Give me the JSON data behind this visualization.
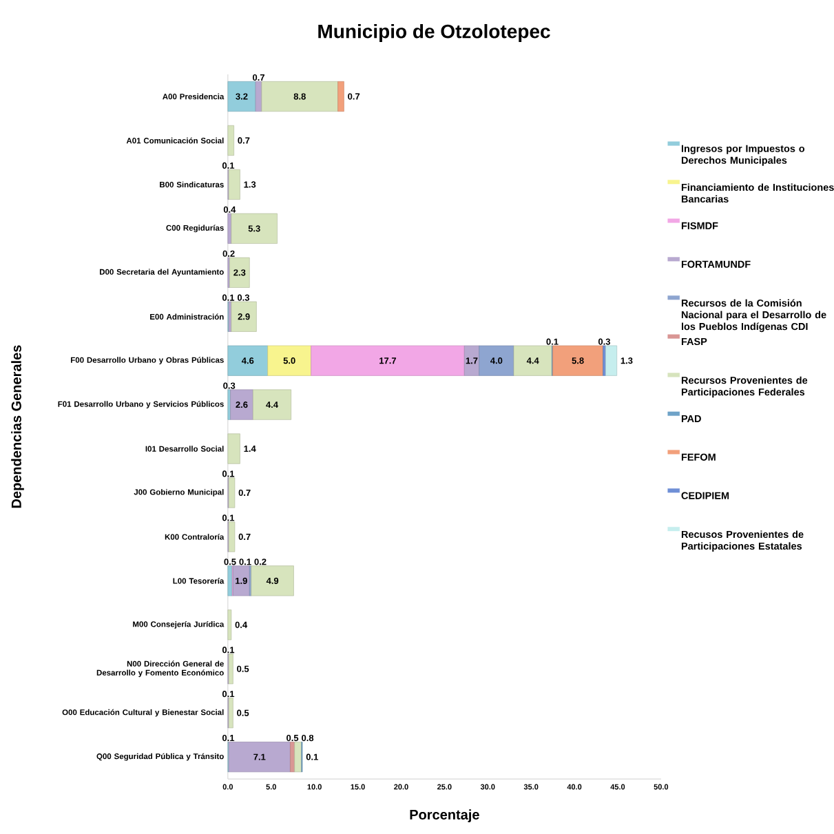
{
  "chart_data": {
    "type": "bar",
    "orientation": "horizontal",
    "stacked": true,
    "title": "Municipio de Otzolotepec",
    "xlabel": "Porcentaje",
    "ylabel": "Dependencias Generales",
    "categories": [
      "A00 Presidencia",
      "A01 Comunicación Social",
      "B00 Sindicaturas",
      "C00 Regidurías",
      "D00 Secretaria del Ayuntamiento",
      "E00 Administración",
      "F00 Desarrollo Urbano y Obras Públicas",
      "F01 Desarrollo Urbano y  Servicios Públicos",
      "I01 Desarrollo Social",
      "J00 Gobierno Municipal",
      "K00 Contraloría",
      "L00 Tesorería",
      "M00 Consejería Jurídica",
      "N00 Dirección General de Desarrollo y Fomento Económico",
      "O00 Educación Cultural y Bienestar Social",
      "Q00 Seguridad Pública y Tránsito"
    ],
    "series": [
      {
        "name": "Ingresos por Impuestos o Derechos Municipales",
        "color": "#92cddc",
        "values": [
          3.2,
          null,
          null,
          null,
          null,
          0.1,
          4.6,
          0.3,
          null,
          null,
          null,
          0.5,
          null,
          null,
          null,
          0.1
        ],
        "value_labels": [
          "3.2",
          null,
          null,
          null,
          null,
          "0.1",
          "4.6",
          "0.3",
          null,
          null,
          null,
          "0.5",
          null,
          null,
          null,
          "0.1"
        ]
      },
      {
        "name": "Financiamiento de Instituciones Bancarias",
        "color": "#f8f48e",
        "values": [
          null,
          null,
          null,
          null,
          null,
          null,
          5.0,
          null,
          null,
          null,
          null,
          null,
          null,
          null,
          null,
          null
        ],
        "value_labels": [
          null,
          null,
          null,
          null,
          null,
          null,
          "5.0",
          null,
          null,
          null,
          null,
          null,
          null,
          null,
          null,
          null
        ]
      },
      {
        "name": "FISMDF",
        "color": "#f2a7e6",
        "values": [
          null,
          null,
          null,
          null,
          null,
          null,
          17.7,
          null,
          null,
          null,
          null,
          0.1,
          null,
          null,
          null,
          null
        ],
        "value_labels": [
          null,
          null,
          null,
          null,
          null,
          null,
          "17.7",
          null,
          null,
          null,
          null,
          "0.1",
          null,
          null,
          null,
          null
        ]
      },
      {
        "name": "FORTAMUNDF",
        "color": "#b8a9d0",
        "values": [
          0.7,
          null,
          0.1,
          0.4,
          0.2,
          0.3,
          1.7,
          2.6,
          null,
          0.1,
          0.1,
          1.9,
          null,
          0.1,
          0.1,
          7.1
        ],
        "value_labels": [
          "0.7",
          null,
          "0.1",
          "0.4",
          "0.2",
          "0.3",
          "1.7",
          "2.6",
          null,
          "0.1",
          "0.1",
          "1.9",
          null,
          "0.1",
          "0.1",
          "7.1"
        ]
      },
      {
        "name": "Recursos de la Comisión Nacional para el Desarrollo de los Pueblos Indígenas CDI",
        "color": "#8ea5d0",
        "values": [
          null,
          null,
          null,
          null,
          null,
          null,
          4.0,
          null,
          null,
          null,
          null,
          0.2,
          null,
          null,
          null,
          null
        ],
        "value_labels": [
          null,
          null,
          null,
          null,
          null,
          null,
          "4.0",
          null,
          null,
          null,
          null,
          "0.2",
          null,
          null,
          null,
          null
        ]
      },
      {
        "name": "FASP",
        "color": "#d99694",
        "values": [
          null,
          null,
          null,
          null,
          null,
          null,
          null,
          null,
          null,
          null,
          null,
          null,
          null,
          null,
          null,
          0.5
        ],
        "value_labels": [
          null,
          null,
          null,
          null,
          null,
          null,
          null,
          null,
          null,
          null,
          null,
          null,
          null,
          null,
          null,
          "0.5"
        ]
      },
      {
        "name": "Recursos Provenientes de Participaciones Federales",
        "color": "#d7e4bd",
        "values": [
          8.8,
          0.7,
          1.3,
          5.3,
          2.3,
          2.9,
          4.4,
          4.4,
          1.4,
          0.7,
          0.7,
          4.9,
          0.4,
          0.5,
          0.5,
          0.8
        ],
        "value_labels": [
          "8.8",
          "0.7",
          "1.3",
          "5.3",
          "2.3",
          "2.9",
          "4.4",
          "4.4",
          "1.4",
          "0.7",
          "0.7",
          "4.9",
          "0.4",
          "0.5",
          "0.5",
          "0.8"
        ]
      },
      {
        "name": "PAD",
        "color": "#6fa3c8",
        "values": [
          null,
          null,
          null,
          null,
          null,
          null,
          0.1,
          null,
          null,
          null,
          null,
          null,
          null,
          null,
          null,
          0.1
        ],
        "value_labels": [
          null,
          null,
          null,
          null,
          null,
          null,
          "0.1",
          null,
          null,
          null,
          null,
          null,
          null,
          null,
          null,
          "0.1"
        ]
      },
      {
        "name": "FEFOM",
        "color": "#f2a07b",
        "values": [
          0.7,
          null,
          null,
          null,
          null,
          null,
          5.8,
          null,
          null,
          null,
          null,
          null,
          null,
          null,
          null,
          null
        ],
        "value_labels": [
          "0.7",
          null,
          null,
          null,
          null,
          null,
          "5.8",
          null,
          null,
          null,
          null,
          null,
          null,
          null,
          null,
          null
        ]
      },
      {
        "name": "CEDIPIEM",
        "color": "#6f8fd6",
        "values": [
          null,
          null,
          null,
          null,
          null,
          null,
          0.3,
          null,
          null,
          null,
          null,
          null,
          null,
          null,
          null,
          null
        ],
        "value_labels": [
          null,
          null,
          null,
          null,
          null,
          null,
          "0.3",
          null,
          null,
          null,
          null,
          null,
          null,
          null,
          null,
          null
        ]
      },
      {
        "name": "Recusos Provenientes de Participaciones Estatales",
        "color": "#c6eeee",
        "values": [
          null,
          null,
          null,
          null,
          null,
          null,
          1.3,
          null,
          null,
          null,
          null,
          null,
          null,
          null,
          null,
          null
        ],
        "value_labels": [
          null,
          null,
          null,
          null,
          null,
          null,
          "1.3",
          null,
          null,
          null,
          null,
          null,
          null,
          null,
          null,
          null
        ]
      }
    ],
    "xlim": [
      0,
      50
    ],
    "xticks": [
      {
        "value": 0,
        "label": "0.0"
      },
      {
        "value": 5,
        "label": "5.0"
      },
      {
        "value": 10,
        "label": "10.0"
      },
      {
        "value": 15,
        "label": "15.0"
      },
      {
        "value": 20,
        "label": "20.0"
      },
      {
        "value": 25,
        "label": "25.0"
      },
      {
        "value": 30,
        "label": "30.0"
      },
      {
        "value": 35,
        "label": "35.0"
      },
      {
        "value": 40,
        "label": "40.0"
      },
      {
        "value": 45,
        "label": "45.0"
      },
      {
        "value": 50,
        "label": "50.0"
      }
    ],
    "legend": "right",
    "grid": false
  }
}
